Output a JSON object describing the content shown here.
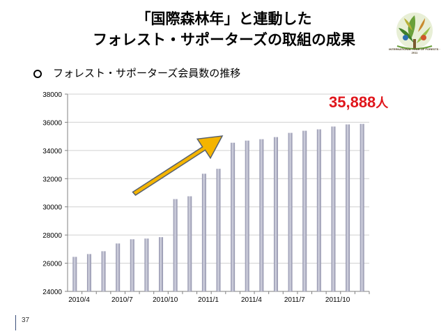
{
  "slide": {
    "title_line1": "「国際森林年」と連動した",
    "title_line2": "フォレスト・サポーターズの取組の成果",
    "subtitle": "フォレスト・サポーターズ会員数の推移",
    "total_value": "35,888",
    "total_unit": "人",
    "page_number": "37",
    "logo_caption": "INTERNATIONAL YEAR OF FORESTS · 2011"
  },
  "colors": {
    "bar": "#8d8ea8",
    "bar_highlight": "#d5d6e2",
    "arrow_fill": "#f4b400",
    "arrow_stroke": "#57606e",
    "total_text": "#e0151b",
    "grid": "#d0d0d0"
  },
  "chart_data": {
    "type": "bar",
    "title": "",
    "xlabel": "",
    "ylabel": "",
    "ylim": [
      24000,
      38000
    ],
    "yticks": [
      24000,
      26000,
      28000,
      30000,
      32000,
      34000,
      36000,
      38000
    ],
    "grid": true,
    "categories": [
      "2010/4",
      "2010/5",
      "2010/6",
      "2010/7",
      "2010/8",
      "2010/9",
      "2010/10",
      "2010/11",
      "2010/12",
      "2011/1",
      "2011/2",
      "2011/3",
      "2011/4",
      "2011/5",
      "2011/6",
      "2011/7",
      "2011/8",
      "2011/9",
      "2011/10",
      "2011/11",
      "2011/12"
    ],
    "tick_labels": [
      "2010/4",
      "2010/7",
      "2010/10",
      "2011/1",
      "2011/4",
      "2011/7",
      "2011/10"
    ],
    "values": [
      26450,
      26650,
      26850,
      27400,
      27700,
      27750,
      27850,
      30550,
      30750,
      32350,
      32700,
      34550,
      34700,
      34800,
      34950,
      35250,
      35400,
      35500,
      35700,
      35850,
      35888
    ],
    "annotations": [
      "increasing-trend-arrow"
    ]
  }
}
